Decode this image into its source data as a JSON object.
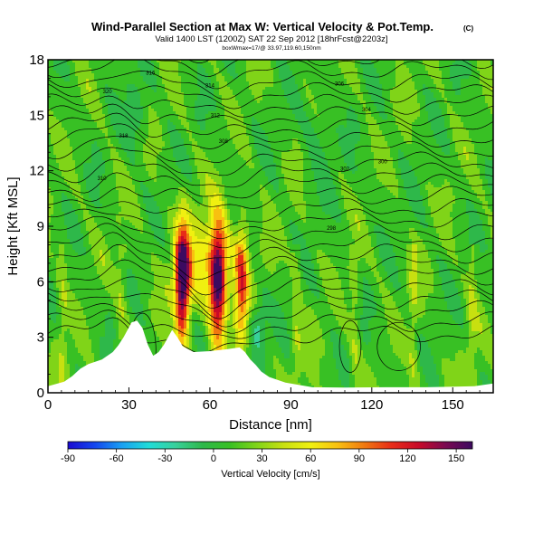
{
  "chart_data": {
    "type": "heatmap",
    "title": "Wind-Parallel Section at Max W: Vertical Velocity & Pot.Temp.",
    "title_mark": "(C)",
    "subtitle": "Valid 1400 LST (1200Z) SAT 22 Sep 2012 [18hrFcst@2203z]",
    "subtitle2": "boxWmax=17/@ 33.97,119.60,150nm",
    "xlabel": "Distance [nm]",
    "ylabel": "Height [Kft MSL]",
    "xlim": [
      0,
      165
    ],
    "ylim": [
      0,
      18
    ],
    "x_ticks": [
      0,
      30,
      60,
      90,
      120,
      150
    ],
    "y_ticks": [
      0,
      3,
      6,
      9,
      12,
      15,
      18
    ],
    "colorbar": {
      "label": "Vertical Velocity [cm/s]",
      "range": [
        -90,
        160
      ],
      "ticks": [
        -90,
        -60,
        -30,
        0,
        30,
        60,
        90,
        120,
        150
      ],
      "colors": [
        "#1a0ad0",
        "#1446ee",
        "#1aa0f2",
        "#20dcd8",
        "#38d09a",
        "#2eb84a",
        "#38c024",
        "#80d418",
        "#c8e010",
        "#f0f010",
        "#f8c010",
        "#f07810",
        "#e82c18",
        "#c80a28",
        "#7a0a50",
        "#3c0a60"
      ]
    },
    "terrain": [
      [
        0,
        0.35
      ],
      [
        6,
        0.6
      ],
      [
        9,
        0.9
      ],
      [
        12,
        1.3
      ],
      [
        15,
        1.55
      ],
      [
        20,
        1.8
      ],
      [
        24,
        2.2
      ],
      [
        26,
        2.55
      ],
      [
        28,
        3.0
      ],
      [
        31,
        3.8
      ],
      [
        33,
        3.9
      ],
      [
        35,
        3.5
      ],
      [
        37,
        2.6
      ],
      [
        39,
        2.0
      ],
      [
        41,
        2.2
      ],
      [
        43,
        2.6
      ],
      [
        46,
        3.4
      ],
      [
        48,
        3.0
      ],
      [
        50,
        2.5
      ],
      [
        54,
        2.2
      ],
      [
        60,
        2.25
      ],
      [
        66,
        2.35
      ],
      [
        71,
        2.45
      ],
      [
        73,
        2.2
      ],
      [
        75,
        1.8
      ],
      [
        77,
        1.5
      ],
      [
        79,
        1.15
      ],
      [
        82,
        0.85
      ],
      [
        88,
        0.55
      ],
      [
        98,
        0.3
      ],
      [
        110,
        0.28
      ],
      [
        125,
        0.3
      ],
      [
        140,
        0.3
      ],
      [
        158,
        0.35
      ],
      [
        165,
        0.5
      ]
    ],
    "updraft_core": {
      "x_range": [
        46,
        76
      ],
      "peak_w": 140,
      "height_range": [
        2.5,
        9.5
      ]
    },
    "theta_contour_labels": [
      "320",
      "318",
      "316",
      "314",
      "312",
      "310",
      "308",
      "306",
      "304",
      "302",
      "300",
      "298"
    ]
  }
}
